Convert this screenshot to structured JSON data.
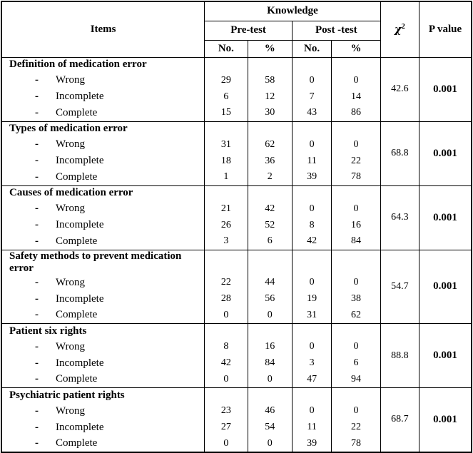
{
  "table": {
    "header": {
      "items_label": "Items",
      "knowledge_label": "Knowledge",
      "pre_test_label": "Pre-test",
      "post_test_label": "Post -test",
      "pre_no_label": "No.",
      "pre_pct_label": "%",
      "post_no_label": "No.",
      "post_pct_label": "%",
      "chi_symbol": "χ",
      "chi_exponent": "2",
      "p_value_label": "P value"
    },
    "bullet": "-"
  },
  "sections": [
    {
      "title": "Definition of medication error",
      "chi_square": "42.6",
      "p_value": "0.001",
      "rows": [
        {
          "label": "Wrong",
          "pre_no": "29",
          "pre_pct": "58",
          "post_no": "0",
          "post_pct": "0"
        },
        {
          "label": "Incomplete",
          "pre_no": "6",
          "pre_pct": "12",
          "post_no": "7",
          "post_pct": "14"
        },
        {
          "label": "Complete",
          "pre_no": "15",
          "pre_pct": "30",
          "post_no": "43",
          "post_pct": "86"
        }
      ]
    },
    {
      "title": "Types of medication error",
      "chi_square": "68.8",
      "p_value": "0.001",
      "rows": [
        {
          "label": "Wrong",
          "pre_no": "31",
          "pre_pct": "62",
          "post_no": "0",
          "post_pct": "0"
        },
        {
          "label": "Incomplete",
          "pre_no": "18",
          "pre_pct": "36",
          "post_no": "11",
          "post_pct": "22"
        },
        {
          "label": "Complete",
          "pre_no": "1",
          "pre_pct": "2",
          "post_no": "39",
          "post_pct": "78"
        }
      ]
    },
    {
      "title": "Causes of medication error",
      "chi_square": "64.3",
      "p_value": "0.001",
      "rows": [
        {
          "label": "Wrong",
          "pre_no": "21",
          "pre_pct": "42",
          "post_no": "0",
          "post_pct": "0"
        },
        {
          "label": "Incomplete",
          "pre_no": "26",
          "pre_pct": "52",
          "post_no": "8",
          "post_pct": "16"
        },
        {
          "label": "Complete",
          "pre_no": "3",
          "pre_pct": "6",
          "post_no": "42",
          "post_pct": "84"
        }
      ]
    },
    {
      "title": "Safety methods to prevent medication error",
      "chi_square": "54.7",
      "p_value": "0.001",
      "rows": [
        {
          "label": "Wrong",
          "pre_no": "22",
          "pre_pct": "44",
          "post_no": "0",
          "post_pct": "0"
        },
        {
          "label": "Incomplete",
          "pre_no": "28",
          "pre_pct": "56",
          "post_no": "19",
          "post_pct": "38"
        },
        {
          "label": "Complete",
          "pre_no": "0",
          "pre_pct": "0",
          "post_no": "31",
          "post_pct": "62"
        }
      ]
    },
    {
      "title": "Patient six rights",
      "chi_square": "88.8",
      "p_value": "0.001",
      "rows": [
        {
          "label": "Wrong",
          "pre_no": "8",
          "pre_pct": "16",
          "post_no": "0",
          "post_pct": "0"
        },
        {
          "label": "Incomplete",
          "pre_no": "42",
          "pre_pct": "84",
          "post_no": "3",
          "post_pct": "6"
        },
        {
          "label": "Complete",
          "pre_no": "0",
          "pre_pct": "0",
          "post_no": "47",
          "post_pct": "94"
        }
      ]
    },
    {
      "title": "Psychiatric patient rights",
      "chi_square": "68.7",
      "p_value": "0.001",
      "rows": [
        {
          "label": "Wrong",
          "pre_no": "23",
          "pre_pct": "46",
          "post_no": "0",
          "post_pct": "0"
        },
        {
          "label": "Incomplete",
          "pre_no": "27",
          "pre_pct": "54",
          "post_no": "11",
          "post_pct": "22"
        },
        {
          "label": "Complete",
          "pre_no": "0",
          "pre_pct": "0",
          "post_no": "39",
          "post_pct": "78"
        }
      ]
    }
  ]
}
